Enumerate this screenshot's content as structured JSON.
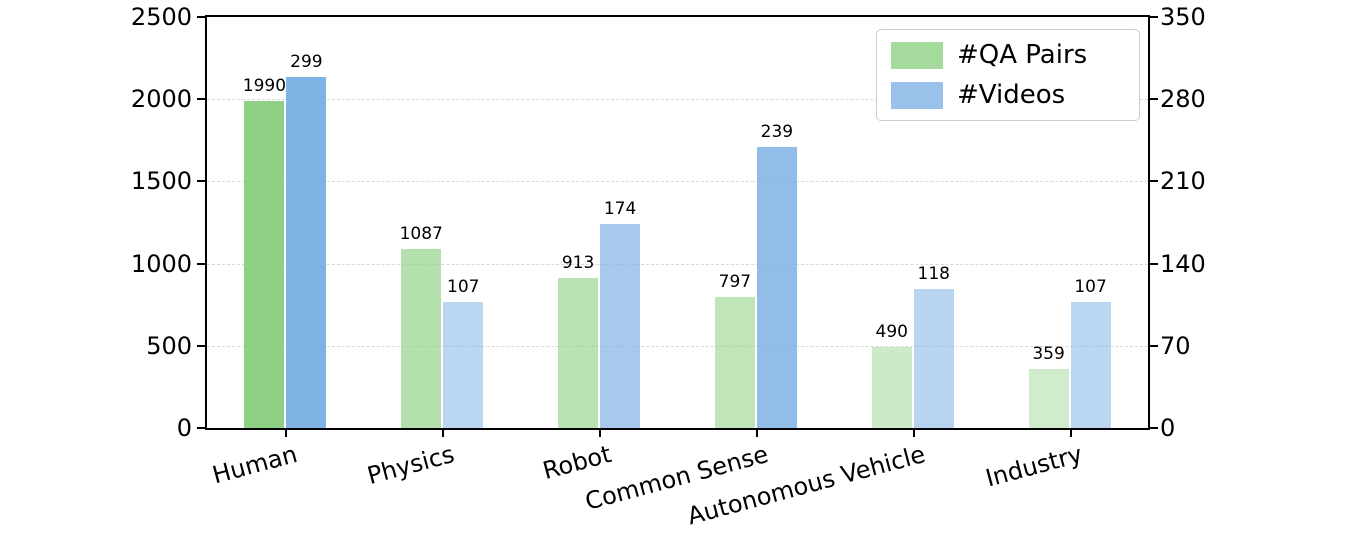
{
  "chart_data": {
    "type": "bar",
    "title": "",
    "categories": [
      "Human",
      "Physics",
      "Robot",
      "Common Sense",
      "Autonomous Vehicle",
      "Industry"
    ],
    "series": [
      {
        "name": "#QA Pairs",
        "axis": "left",
        "color": "#8ed184",
        "values": [
          1990,
          1087,
          913,
          797,
          490,
          359
        ]
      },
      {
        "name": "#Videos",
        "axis": "right",
        "color": "#7fb2e5",
        "values": [
          299,
          107,
          174,
          239,
          118,
          107
        ]
      }
    ],
    "left_axis": {
      "ticks": [
        0,
        500,
        1000,
        1500,
        2000,
        2500
      ],
      "max": 2500
    },
    "right_axis": {
      "ticks": [
        0,
        70,
        140,
        210,
        280,
        350
      ],
      "max": 350
    },
    "legend": {
      "entries": [
        "#QA Pairs",
        "#Videos"
      ],
      "position": "top-right"
    },
    "grid": "dashed-horizontal",
    "xlabel": "",
    "ylabel_left": "",
    "ylabel_right": ""
  }
}
